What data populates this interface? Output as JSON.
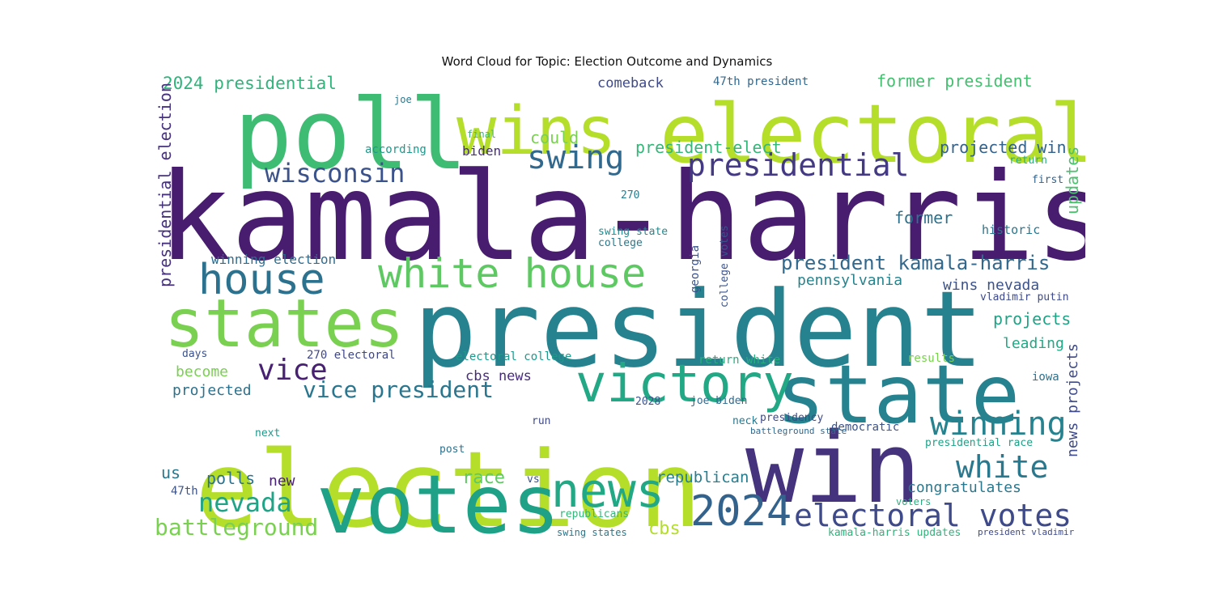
{
  "title": "Word Cloud for Topic: Election Outcome and Dynamics",
  "colors": {
    "background": "#ffffff",
    "title": "#111111",
    "palette": "viridis"
  },
  "words": [
    {
      "text": "kamala-harris",
      "color": "#481d6f"
    },
    {
      "text": "president",
      "color": "#26828e"
    },
    {
      "text": "election",
      "color": "#b5de2b"
    },
    {
      "text": "poll",
      "color": "#3fbc73"
    },
    {
      "text": "electoral",
      "color": "#b5de2b"
    },
    {
      "text": "wins",
      "color": "#b5de2b"
    },
    {
      "text": "votes",
      "color": "#1fa187"
    },
    {
      "text": "win",
      "color": "#46337e"
    },
    {
      "text": "state",
      "color": "#26828e"
    },
    {
      "text": "states",
      "color": "#7ad151"
    },
    {
      "text": "victory",
      "color": "#22a884"
    },
    {
      "text": "white house",
      "color": "#5ec962"
    },
    {
      "text": "house",
      "color": "#2c728e"
    },
    {
      "text": "news",
      "color": "#22a884"
    },
    {
      "text": "2024",
      "color": "#33638d"
    },
    {
      "text": "presidential",
      "color": "#443983"
    },
    {
      "text": "wisconsin",
      "color": "#3b528b"
    },
    {
      "text": "swing",
      "color": "#31688e"
    },
    {
      "text": "electoral votes",
      "color": "#3e4a89"
    },
    {
      "text": "white",
      "color": "#2a788e"
    },
    {
      "text": "winning",
      "color": "#26828e"
    },
    {
      "text": "vice",
      "color": "#482173"
    },
    {
      "text": "nevada",
      "color": "#20a386"
    },
    {
      "text": "battleground",
      "color": "#7ad151"
    },
    {
      "text": "vice president",
      "color": "#2a768e"
    },
    {
      "text": "president kamala-harris",
      "color": "#31688e"
    },
    {
      "text": "2024 presidential",
      "color": "#2fb47c"
    },
    {
      "text": "former president",
      "color": "#44bf70"
    },
    {
      "text": "presidential election",
      "color": "#46327e"
    },
    {
      "text": "president-elect",
      "color": "#35b779"
    },
    {
      "text": "projected win",
      "color": "#33638d"
    },
    {
      "text": "could",
      "color": "#7ad151"
    },
    {
      "text": "comeback",
      "color": "#3e4a89"
    },
    {
      "text": "47th president",
      "color": "#31688e"
    },
    {
      "text": "biden",
      "color": "#472d7b"
    },
    {
      "text": "according",
      "color": "#1f988b"
    },
    {
      "text": "updates",
      "color": "#4ac16d"
    },
    {
      "text": "former",
      "color": "#2c728e"
    },
    {
      "text": "pennsylvania",
      "color": "#25848e"
    },
    {
      "text": "wins nevada",
      "color": "#3b528b"
    },
    {
      "text": "projects",
      "color": "#20a386"
    },
    {
      "text": "leading",
      "color": "#22a884"
    },
    {
      "text": "winning election",
      "color": "#2f6c8e"
    },
    {
      "text": "swing state",
      "color": "#23898e"
    },
    {
      "text": "college",
      "color": "#2a788e"
    },
    {
      "text": "historic",
      "color": "#2a768e"
    },
    {
      "text": "270",
      "color": "#287d8e"
    },
    {
      "text": "georgia",
      "color": "#3b528b"
    },
    {
      "text": "college votes",
      "color": "#3b528b"
    },
    {
      "text": "cbs news",
      "color": "#472d7b"
    },
    {
      "text": "projected",
      "color": "#2c728e"
    },
    {
      "text": "become",
      "color": "#7ad151"
    },
    {
      "text": "electoral college",
      "color": "#1f988b"
    },
    {
      "text": "270 electoral",
      "color": "#3f4788"
    },
    {
      "text": "return white",
      "color": "#29af7f"
    },
    {
      "text": "results",
      "color": "#7ad151"
    },
    {
      "text": "iowa",
      "color": "#2c728e"
    },
    {
      "text": "news projects",
      "color": "#3e4a89"
    },
    {
      "text": "republican",
      "color": "#287d8e"
    },
    {
      "text": "congratulates",
      "color": "#2a788e"
    },
    {
      "text": "race",
      "color": "#5ec962"
    },
    {
      "text": "cbs",
      "color": "#b5de2b"
    },
    {
      "text": "polls",
      "color": "#2c728e"
    },
    {
      "text": "new",
      "color": "#482173"
    },
    {
      "text": "us",
      "color": "#2a788e"
    },
    {
      "text": "47th",
      "color": "#3b528b"
    },
    {
      "text": "republicans",
      "color": "#35b779"
    },
    {
      "text": "swing states",
      "color": "#2a788e"
    },
    {
      "text": "kamala-harris updates",
      "color": "#2fb47c"
    },
    {
      "text": "president vladimir",
      "color": "#3e4a89"
    },
    {
      "text": "presidential race",
      "color": "#1fa187"
    },
    {
      "text": "democratic",
      "color": "#3b528b"
    },
    {
      "text": "battleground state",
      "color": "#31688e"
    },
    {
      "text": "presidency",
      "color": "#3e4a89"
    },
    {
      "text": "joe biden",
      "color": "#31688e"
    },
    {
      "text": "2028",
      "color": "#3b528b"
    },
    {
      "text": "neck",
      "color": "#2a788e"
    },
    {
      "text": "vladimir putin",
      "color": "#3e4a89"
    },
    {
      "text": "days",
      "color": "#3b528b"
    },
    {
      "text": "next",
      "color": "#1f988b"
    },
    {
      "text": "post",
      "color": "#2c728e"
    },
    {
      "text": "run",
      "color": "#3e4a89"
    },
    {
      "text": "vs",
      "color": "#3b528b"
    },
    {
      "text": "voters",
      "color": "#29af7f"
    },
    {
      "text": "electoral votes",
      "color": "#3e4a89"
    },
    {
      "text": "final",
      "color": "#35b779"
    },
    {
      "text": "joe",
      "color": "#2a788e"
    },
    {
      "text": "first",
      "color": "#33638d"
    },
    {
      "text": "return",
      "color": "#29af7f"
    }
  ]
}
